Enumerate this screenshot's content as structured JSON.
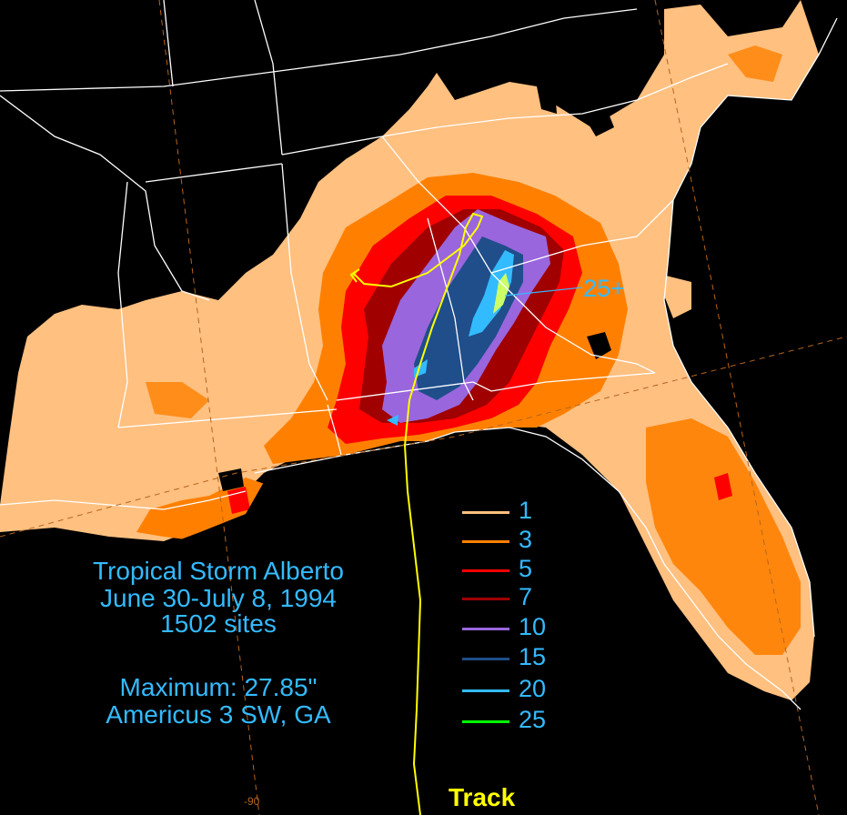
{
  "title": {
    "line1": "Tropical Storm Alberto",
    "line2": "June 30-July 8, 1994",
    "line3": "1502 sites"
  },
  "maximum": {
    "line1": "Maximum: 27.85\"",
    "line2": "Americus 3 SW, GA"
  },
  "callout": "25+",
  "longitude_label": "-90",
  "track_label": "Track",
  "legend": [
    {
      "label": "1",
      "color": "#ffc080"
    },
    {
      "label": "3",
      "color": "#ff8000"
    },
    {
      "label": "5",
      "color": "#ff0000"
    },
    {
      "label": "7",
      "color": "#a00000"
    },
    {
      "label": "10",
      "color": "#9966dd"
    },
    {
      "label": "15",
      "color": "#1f4e8a"
    },
    {
      "label": "20",
      "color": "#33bbff"
    },
    {
      "label": "25",
      "color": "#00ff00"
    }
  ],
  "colors": {
    "background": "#000000",
    "state_borders": "#ffffff",
    "graticule": "#b5651d",
    "track": "#ffff00",
    "text": "#33bbff",
    "max_contour": "#ccff66"
  }
}
